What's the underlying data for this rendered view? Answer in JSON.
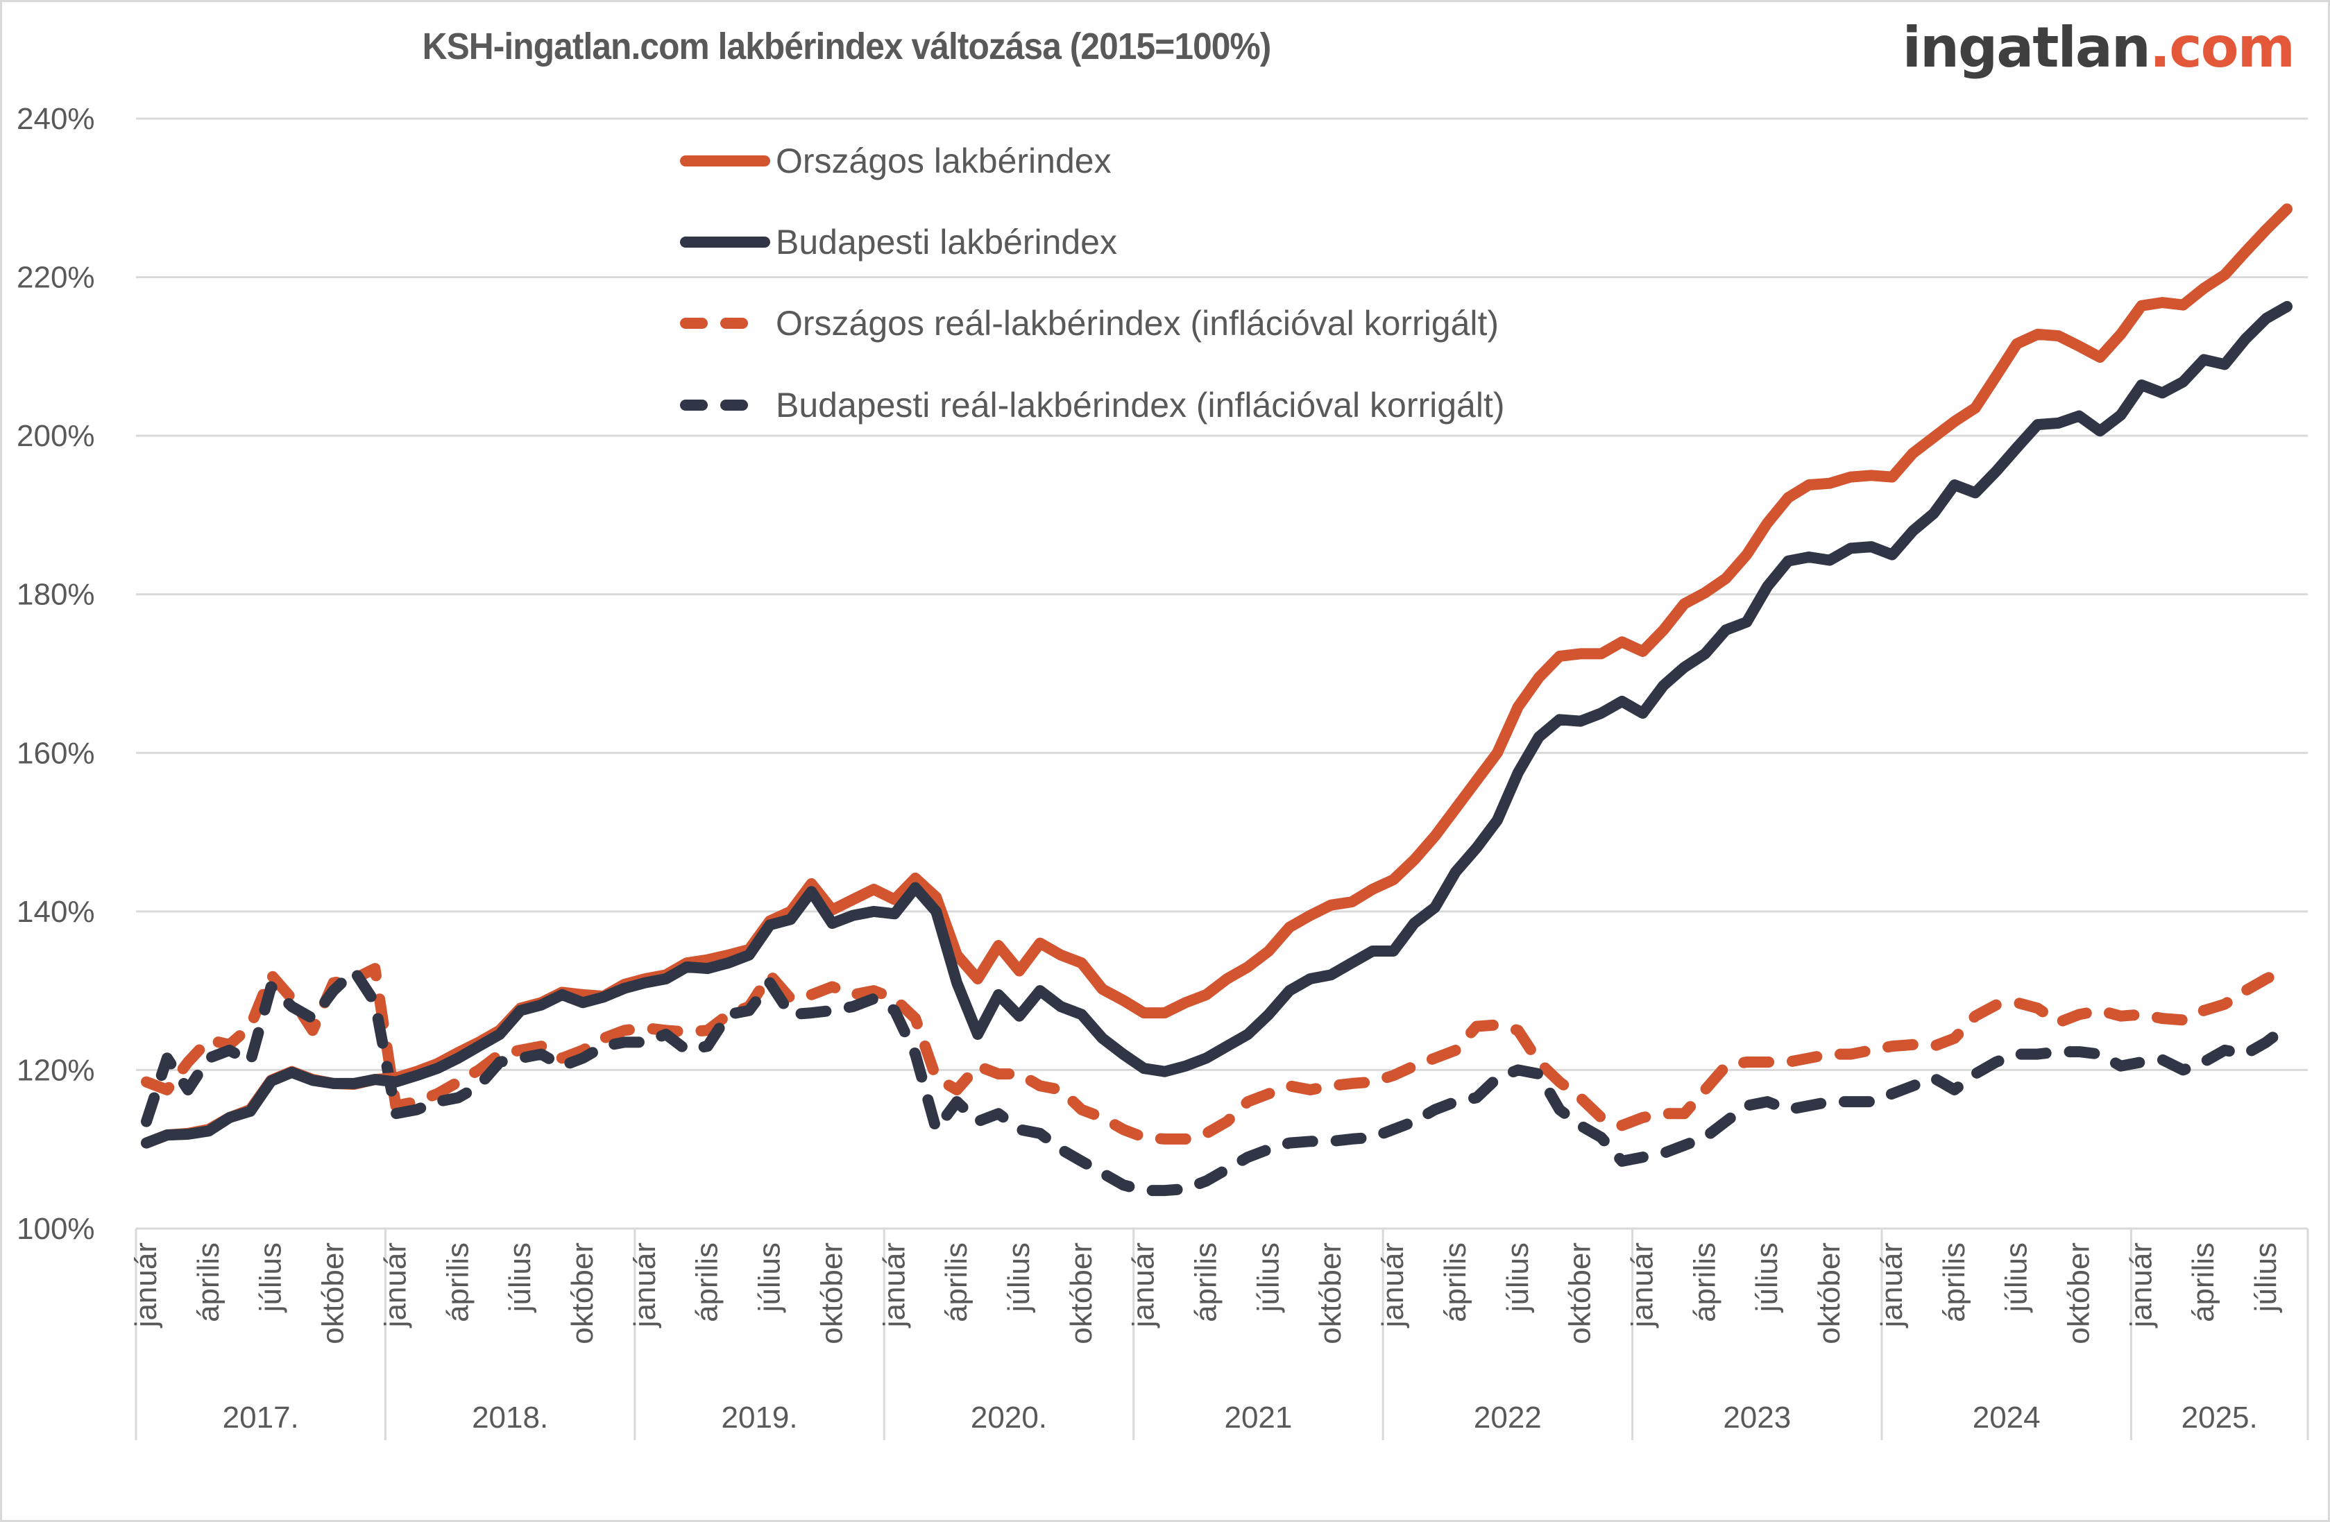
{
  "header": {
    "title": "KSH-ingatlan.com lakbérindex változása (2015=100%)",
    "logo_main": "ingatlan",
    "logo_accent": ".com"
  },
  "colors": {
    "national": "#d35530",
    "budapest": "#313646",
    "grid": "#d9d9d9",
    "text": "#595959",
    "logo_accent": "#e4583a"
  },
  "chart_data": {
    "type": "line",
    "title": "KSH-ingatlan.com lakbérindex változása (2015=100%)",
    "xlabel": "",
    "ylabel": "",
    "ylim": [
      100,
      240
    ],
    "yticks": [
      100,
      120,
      140,
      160,
      180,
      200,
      220,
      240
    ],
    "ytick_labels": [
      "100%",
      "120%",
      "140%",
      "160%",
      "180%",
      "200%",
      "220%",
      "240%"
    ],
    "grid": true,
    "legend_position": "top-center",
    "x_month_labels": [
      "január",
      "április",
      "július",
      "október"
    ],
    "years": [
      {
        "label": "2017.",
        "months": 12
      },
      {
        "label": "2018.",
        "months": 12
      },
      {
        "label": "2019.",
        "months": 12
      },
      {
        "label": "2020.",
        "months": 12
      },
      {
        "label": "2021",
        "months": 12
      },
      {
        "label": "2022",
        "months": 12
      },
      {
        "label": "2023",
        "months": 12
      },
      {
        "label": "2024",
        "months": 12
      },
      {
        "label": "2025.",
        "months": 8
      }
    ],
    "series": [
      {
        "name": "Országos lakbérindex",
        "color": "#d35530",
        "style": "solid",
        "values": [
          110.8,
          111.8,
          112.0,
          112.5,
          114.0,
          115.0,
          118.7,
          119.8,
          118.8,
          118.3,
          118.2,
          118.8,
          119.0,
          119.8,
          120.8,
          122.2,
          123.5,
          125.0,
          127.8,
          128.5,
          129.8,
          129.5,
          129.3,
          130.8,
          131.5,
          132.0,
          133.5,
          133.9,
          134.5,
          135.2,
          138.8,
          140.0,
          143.5,
          140.2,
          141.5,
          142.8,
          141.5,
          144.2,
          141.8,
          134.5,
          131.5,
          135.7,
          132.5,
          136.0,
          134.5,
          133.5,
          130.2,
          128.8,
          127.2,
          127.2,
          128.5,
          129.5,
          131.5,
          133.0,
          135.0,
          138.0,
          139.5,
          140.8,
          141.2,
          142.8,
          144.0,
          146.5,
          149.5,
          153.0,
          156.5,
          160.0,
          165.8,
          169.5,
          172.2,
          172.5,
          172.5,
          174.0,
          172.8,
          175.5,
          178.8,
          180.2,
          182.0,
          185.0,
          189.0,
          192.2,
          193.8,
          194.0,
          194.8,
          195.0,
          194.8,
          197.8,
          199.8,
          201.8,
          203.5,
          207.5,
          211.6,
          212.8,
          212.6,
          211.3,
          209.9,
          212.8,
          216.4,
          216.8,
          216.5,
          218.6,
          220.3,
          223.2,
          226.0,
          228.6
        ]
      },
      {
        "name": "Budapesti lakbérindex",
        "color": "#313646",
        "style": "solid",
        "values": [
          110.8,
          111.8,
          111.9,
          112.3,
          114.0,
          114.8,
          118.6,
          119.7,
          118.7,
          118.3,
          118.3,
          118.8,
          118.5,
          119.3,
          120.2,
          121.5,
          123.0,
          124.5,
          127.5,
          128.2,
          129.5,
          128.5,
          129.2,
          130.3,
          131.0,
          131.5,
          133.0,
          132.8,
          133.5,
          134.5,
          138.3,
          139.0,
          142.5,
          138.5,
          139.5,
          140.0,
          139.7,
          143.0,
          140.0,
          131.0,
          124.5,
          129.5,
          126.8,
          130.0,
          128.0,
          127.0,
          124.0,
          122.0,
          120.2,
          119.8,
          120.5,
          121.5,
          123.0,
          124.5,
          127.0,
          130.0,
          131.5,
          132.0,
          133.5,
          135.0,
          135.0,
          138.5,
          140.5,
          145.0,
          148.0,
          151.5,
          157.5,
          162.0,
          164.2,
          164.0,
          165.0,
          166.5,
          165.0,
          168.5,
          170.8,
          172.5,
          175.5,
          176.5,
          181.0,
          184.2,
          184.7,
          184.3,
          185.8,
          186.0,
          185.0,
          188.0,
          190.2,
          193.8,
          192.8,
          195.5,
          198.5,
          201.4,
          201.6,
          202.5,
          200.6,
          202.6,
          206.4,
          205.4,
          206.8,
          209.6,
          209.0,
          212.2,
          214.8,
          216.3
        ]
      },
      {
        "name": "Országos reál-lakbérindex (inflációval korrigált)",
        "color": "#d35530",
        "style": "dashed",
        "values": [
          118.5,
          117.5,
          121.0,
          123.8,
          123.2,
          125.5,
          132.0,
          129.0,
          125.0,
          131.0,
          131.5,
          132.8,
          115.5,
          116.0,
          117.0,
          118.5,
          120.0,
          122.0,
          122.5,
          123.0,
          121.5,
          122.5,
          124.0,
          125.0,
          125.3,
          125.0,
          124.8,
          125.0,
          127.0,
          128.0,
          132.0,
          129.0,
          129.5,
          130.5,
          129.5,
          130.0,
          129.0,
          126.5,
          119.0,
          117.5,
          120.5,
          119.5,
          119.5,
          118.0,
          117.5,
          115.0,
          114.0,
          112.5,
          111.5,
          111.3,
          111.3,
          112.0,
          113.5,
          116.0,
          117.0,
          118.0,
          117.5,
          118.0,
          118.3,
          118.5,
          119.3,
          120.5,
          121.5,
          122.5,
          125.5,
          125.7,
          125.0,
          121.0,
          118.5,
          116.5,
          114.0,
          113.0,
          114.0,
          114.5,
          114.5,
          117.5,
          120.5,
          121.0,
          121.0,
          121.0,
          121.5,
          122.0,
          122.0,
          122.5,
          123.0,
          123.2,
          123.0,
          124.0,
          126.8,
          128.2,
          128.5,
          127.8,
          126.0,
          127.0,
          127.5,
          126.8,
          127.0,
          126.5,
          126.3,
          127.5,
          128.3,
          130.0,
          131.5,
          132.8
        ]
      },
      {
        "name": "Budapesti reál-lakbérindex (inflációval korrigált)",
        "color": "#313646",
        "style": "dashed",
        "values": [
          113.5,
          121.5,
          117.5,
          121.5,
          122.5,
          121.0,
          130.5,
          128.0,
          126.5,
          130.0,
          132.5,
          128.5,
          114.5,
          115.0,
          116.0,
          116.5,
          118.0,
          121.0,
          121.5,
          122.0,
          120.5,
          121.5,
          123.0,
          123.5,
          123.5,
          124.5,
          122.5,
          123.0,
          127.0,
          127.5,
          131.0,
          127.0,
          127.2,
          127.5,
          128.0,
          129.0,
          127.5,
          122.0,
          112.5,
          116.0,
          113.5,
          114.5,
          112.5,
          112.0,
          110.0,
          108.5,
          107.0,
          105.5,
          104.8,
          104.8,
          105.0,
          106.0,
          107.5,
          109.0,
          110.0,
          110.8,
          111.0,
          111.0,
          111.3,
          111.5,
          112.5,
          113.5,
          115.0,
          116.0,
          116.5,
          119.0,
          120.0,
          119.5,
          115.0,
          113.0,
          111.5,
          108.5,
          109.0,
          109.5,
          110.5,
          111.5,
          113.5,
          115.5,
          116.0,
          115.0,
          115.5,
          116.0,
          116.0,
          116.0,
          117.0,
          118.0,
          119.0,
          117.5,
          119.5,
          121.0,
          122.0,
          122.0,
          122.3,
          122.3,
          122.0,
          120.5,
          121.0,
          121.3,
          120.0,
          121.0,
          122.5,
          122.0,
          123.5,
          125.5
        ]
      }
    ]
  }
}
